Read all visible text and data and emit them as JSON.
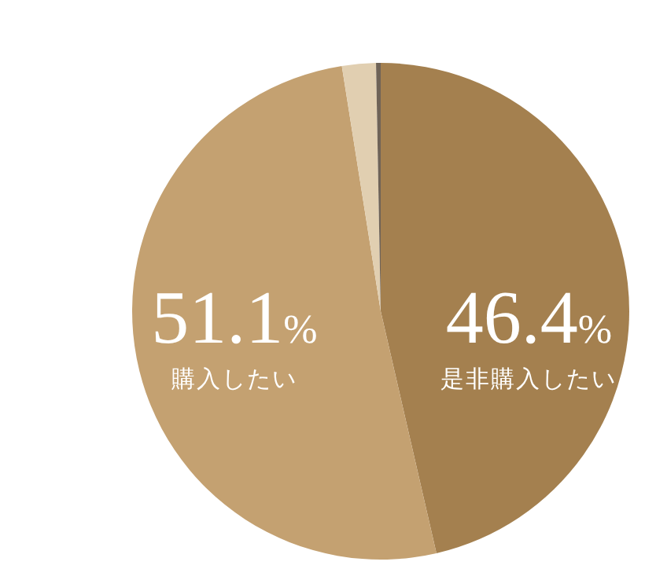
{
  "chart_data": {
    "type": "pie",
    "categories": [
      "是非購入したい",
      "購入したい",
      null,
      null
    ],
    "values": [
      46.4,
      51.1,
      2.2,
      0.3
    ],
    "colors": [
      "#a4804f",
      "#c4a171",
      "#e1cfb1",
      "#6f6357"
    ],
    "value_labels": [
      "46.4%",
      "51.1%",
      null,
      null
    ],
    "legend": false
  }
}
